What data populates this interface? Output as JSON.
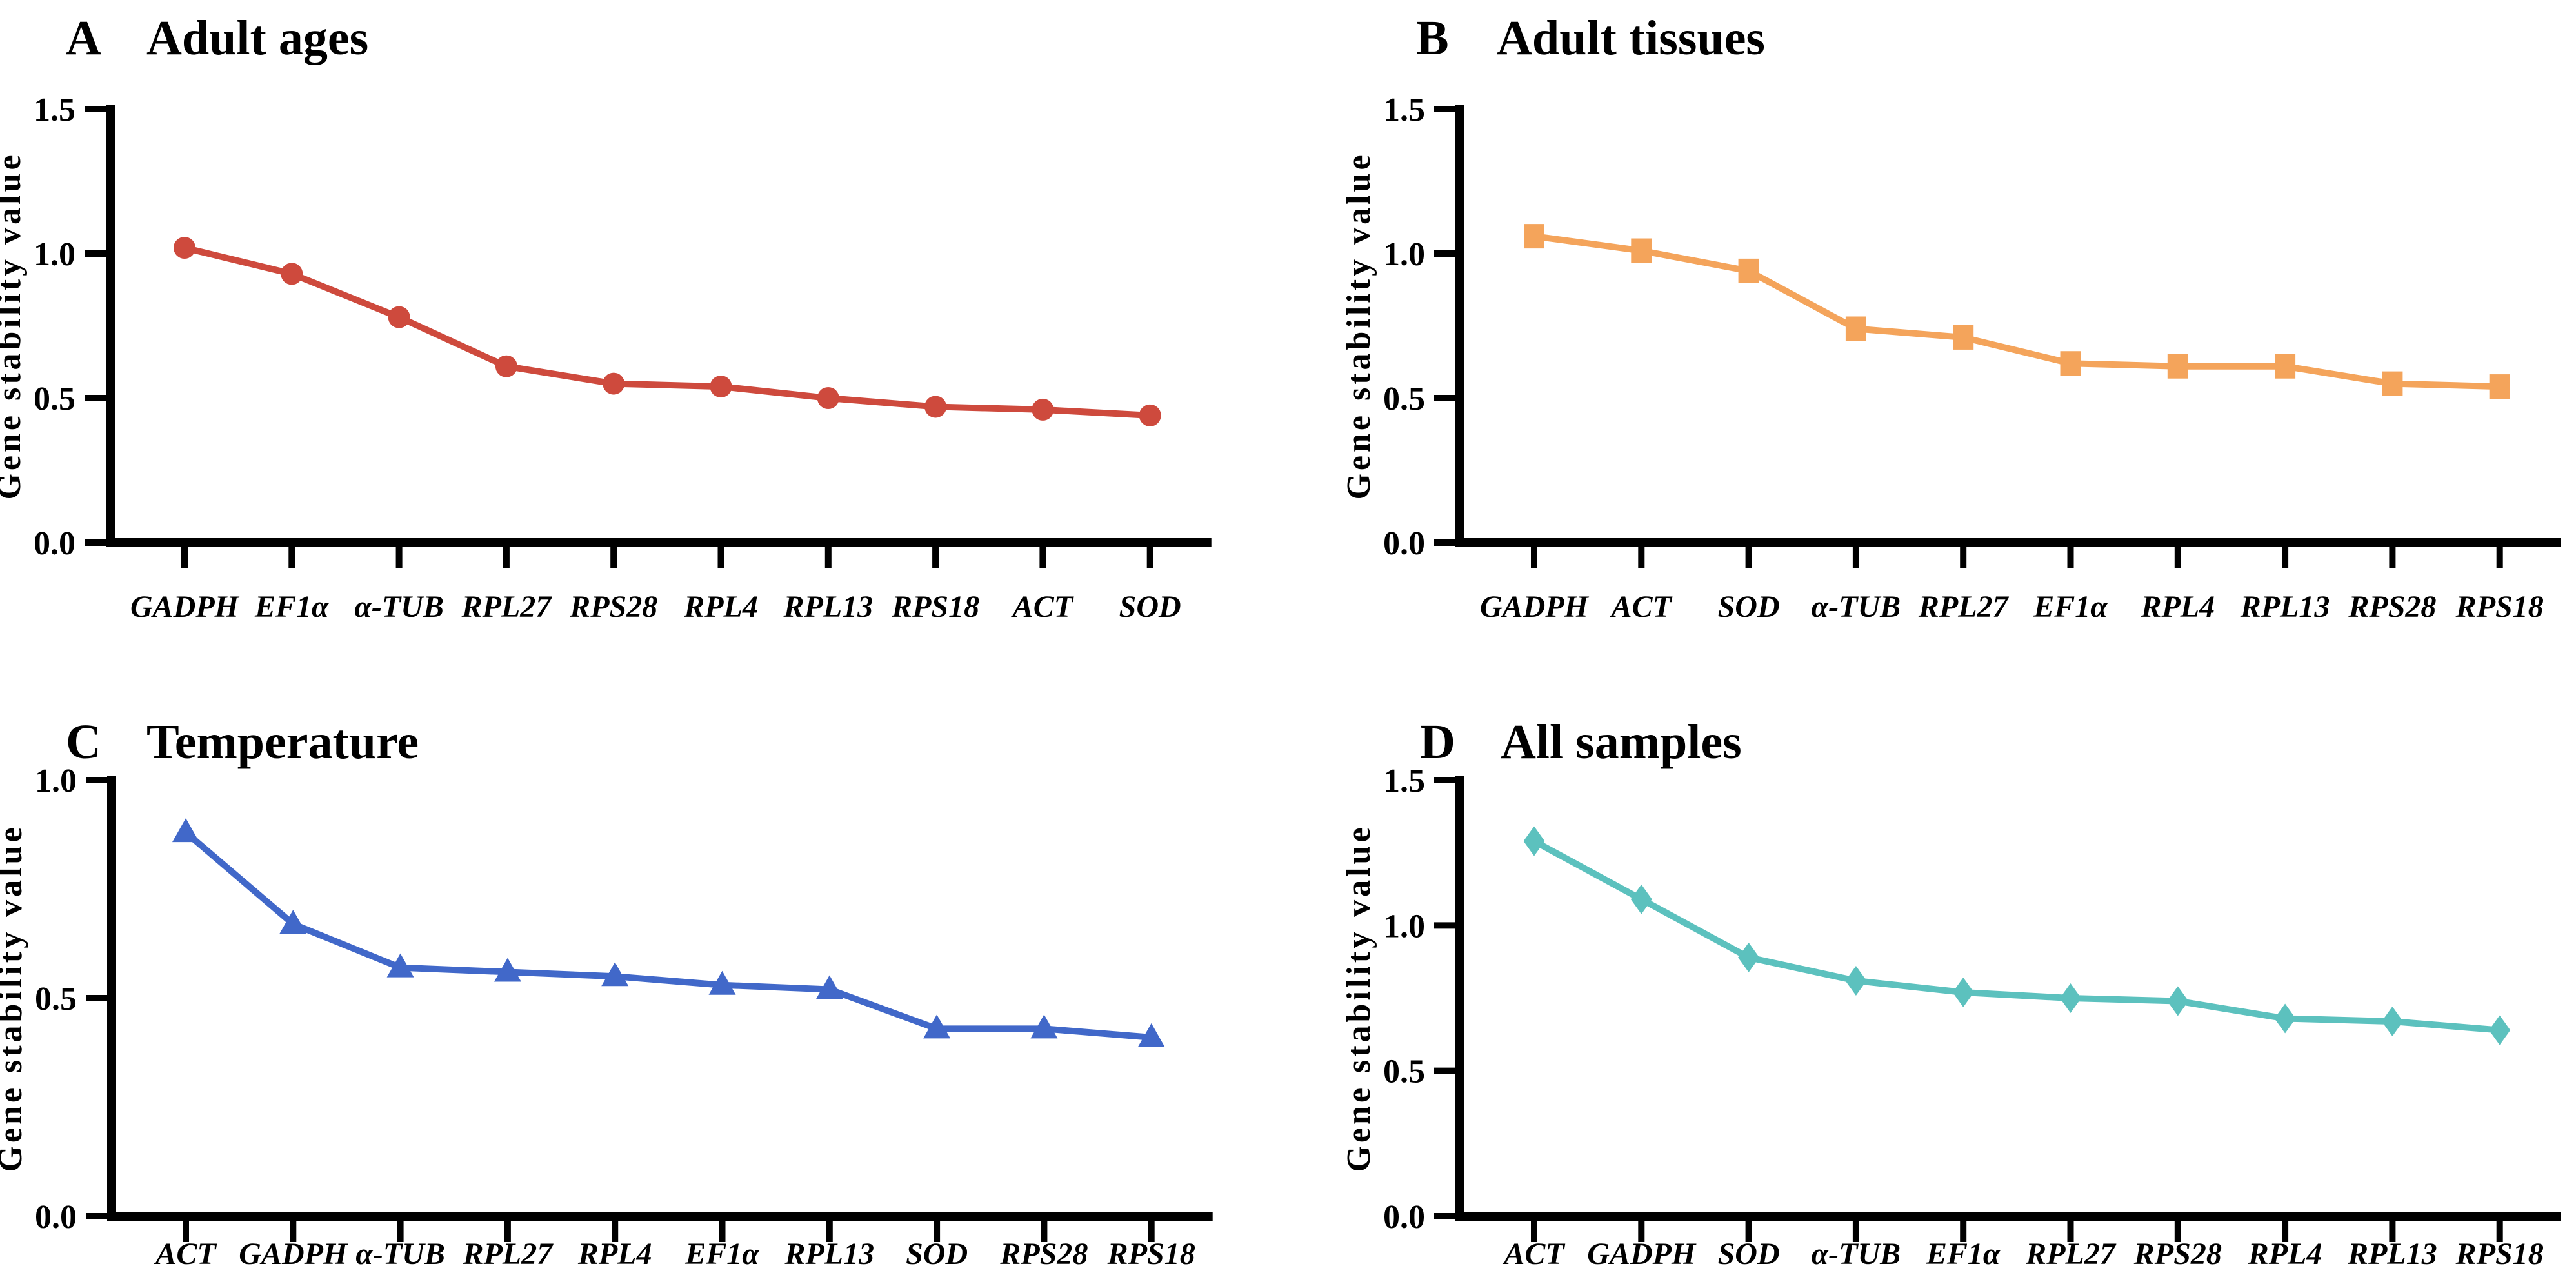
{
  "figure": {
    "ylabel": "Gene stability value",
    "axis_color": "#000000",
    "background": "#ffffff"
  },
  "chart_data": [
    {
      "type": "line",
      "panel_letter": "A",
      "title": "Adult ages",
      "marker": "circle",
      "color": "#CE4A3D",
      "ylabel": "Gene stability value",
      "ylim": [
        0,
        1.5
      ],
      "yticks": [
        "0.0",
        "0.5",
        "1.0",
        "1.5"
      ],
      "grid": false,
      "legend": false,
      "categories": [
        "GADPH",
        "EF1α",
        "α-TUB",
        "RPL27",
        "RPS28",
        "RPL4",
        "RPL13",
        "RPS18",
        "ACT",
        "SOD"
      ],
      "values": [
        1.02,
        0.93,
        0.78,
        0.61,
        0.55,
        0.54,
        0.5,
        0.47,
        0.46,
        0.44
      ]
    },
    {
      "type": "line",
      "panel_letter": "B",
      "title": "Adult tissues",
      "marker": "square",
      "color": "#F4A45B",
      "ylabel": "Gene stability value",
      "ylim": [
        0,
        1.5
      ],
      "yticks": [
        "0.0",
        "0.5",
        "1.0",
        "1.5"
      ],
      "grid": false,
      "legend": false,
      "categories": [
        "GADPH",
        "ACT",
        "SOD",
        "α-TUB",
        "RPL27",
        "EF1α",
        "RPL4",
        "RPL13",
        "RPS28",
        "RPS18"
      ],
      "values": [
        1.06,
        1.01,
        0.94,
        0.74,
        0.71,
        0.62,
        0.61,
        0.61,
        0.55,
        0.54
      ]
    },
    {
      "type": "line",
      "panel_letter": "C",
      "title": "Temperature",
      "marker": "triangle",
      "color": "#4168C9",
      "ylabel": "Gene stability value",
      "ylim": [
        0,
        1.0
      ],
      "yticks": [
        "0.0",
        "0.5",
        "1.0"
      ],
      "grid": false,
      "legend": false,
      "categories": [
        "ACT",
        "GADPH",
        "α-TUB",
        "RPL27",
        "RPL4",
        "EF1α",
        "RPL13",
        "SOD",
        "RPS28",
        "RPS18"
      ],
      "values": [
        0.88,
        0.67,
        0.57,
        0.56,
        0.55,
        0.53,
        0.52,
        0.43,
        0.43,
        0.41
      ]
    },
    {
      "type": "line",
      "panel_letter": "D",
      "title": "All samples",
      "marker": "diamond",
      "color": "#5CC1BE",
      "ylabel": "Gene stability value",
      "ylim": [
        0,
        1.5
      ],
      "yticks": [
        "0.0",
        "0.5",
        "1.0",
        "1.5"
      ],
      "grid": false,
      "legend": false,
      "categories": [
        "ACT",
        "GADPH",
        "SOD",
        "α-TUB",
        "EF1α",
        "RPL27",
        "RPS28",
        "RPL4",
        "RPL13",
        "RPS18"
      ],
      "values": [
        1.29,
        1.09,
        0.89,
        0.81,
        0.77,
        0.75,
        0.74,
        0.68,
        0.67,
        0.64
      ]
    }
  ]
}
